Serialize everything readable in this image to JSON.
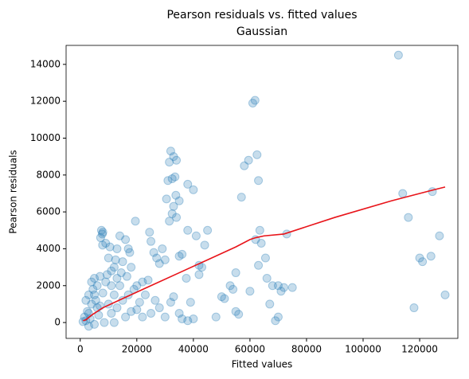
{
  "chart_data": {
    "type": "scatter",
    "title": "Pearson residuals vs. fitted values",
    "subtitle": "Gaussian",
    "x_label": "Fitted values",
    "y_label": "Pearson residuals",
    "xlim": [
      -5000,
      133500
    ],
    "ylim": [
      -860,
      15030
    ],
    "xticks": [
      0,
      20000,
      40000,
      60000,
      80000,
      100000,
      120000
    ],
    "yticks": [
      0,
      2000,
      4000,
      6000,
      8000,
      10000,
      12000,
      14000
    ],
    "points": {
      "color": "#1f77b4",
      "x": [
        112500,
        61000,
        61800,
        32000,
        33000,
        34000,
        31500,
        32500,
        33500,
        31000,
        33800,
        35000,
        30500,
        32500,
        33000,
        34000,
        31500,
        19500,
        58000,
        59500,
        62500,
        63000,
        57000,
        63500,
        64000,
        65500,
        63000,
        66000,
        68000,
        70000,
        71000,
        72000,
        62000,
        60000,
        55000,
        54000,
        53000,
        50000,
        51000,
        55000,
        56000,
        48000,
        67000,
        69000,
        70000,
        73000,
        75000,
        114000,
        116000,
        120000,
        121000,
        124000,
        124500,
        127000,
        129000,
        118000,
        38000,
        40000,
        42000,
        43000,
        41000,
        44000,
        42000,
        45000,
        38000,
        37500,
        39000,
        40000,
        36000,
        35000,
        30000,
        29000,
        28000,
        27000,
        25000,
        24500,
        26000,
        24000,
        22000,
        20000,
        18000,
        17500,
        17000,
        16000,
        14000,
        13000,
        12000,
        11000,
        10000,
        9000,
        7500,
        7800,
        8000,
        7200,
        7900,
        10500,
        12500,
        15000,
        14500,
        16500,
        19000,
        21000,
        23000,
        26500,
        28000,
        30000,
        32000,
        35000,
        36000,
        38000,
        33000,
        25000,
        20000,
        22000,
        2000,
        3000,
        4000,
        5000,
        6000,
        3500,
        2500,
        4500,
        5500,
        6500,
        7000,
        8000,
        9000,
        10000,
        11000,
        12000,
        13000,
        14000,
        15000,
        16000,
        17000,
        18000,
        1500,
        1000,
        3000,
        4000,
        5000,
        6000,
        8500,
        9500,
        12000,
        2000,
        7000,
        11000,
        13000,
        3000,
        5000
      ],
      "y": [
        14500,
        11900,
        12050,
        9300,
        9000,
        8800,
        8700,
        7800,
        7900,
        7700,
        6900,
        6600,
        6700,
        5900,
        6300,
        5700,
        5500,
        5500,
        8500,
        8800,
        9100,
        7700,
        6800,
        5000,
        4300,
        3500,
        3100,
        2400,
        2000,
        2000,
        1700,
        1900,
        4500,
        1700,
        2700,
        1800,
        2000,
        1400,
        1300,
        600,
        450,
        300,
        1000,
        100,
        300,
        4800,
        1900,
        7000,
        5700,
        3500,
        3300,
        3600,
        7100,
        4700,
        1500,
        800,
        7500,
        7200,
        3100,
        3000,
        4700,
        4200,
        2600,
        5000,
        5000,
        2400,
        1100,
        200,
        3700,
        3600,
        3400,
        4000,
        3200,
        3500,
        4400,
        4900,
        3800,
        2300,
        2200,
        2000,
        3000,
        3800,
        4000,
        4500,
        4700,
        4000,
        3000,
        2800,
        3500,
        4300,
        5000,
        4800,
        4900,
        4600,
        4200,
        4100,
        3400,
        3300,
        2700,
        2500,
        1800,
        1100,
        1500,
        1200,
        800,
        300,
        1100,
        500,
        200,
        100,
        1400,
        500,
        700,
        300,
        100,
        500,
        1000,
        1500,
        2000,
        200,
        600,
        1800,
        1200,
        400,
        900,
        1600,
        2200,
        1000,
        500,
        1500,
        800,
        2000,
        1200,
        300,
        1500,
        600,
        300,
        50,
        1500,
        2200,
        2400,
        800,
        0,
        2600,
        0,
        1200,
        2500,
        2000,
        2400,
        -200,
        -100
      ]
    },
    "line": {
      "color": "#e8141a",
      "x": [
        1000,
        2000,
        4000,
        8000,
        15000,
        25000,
        35000,
        45000,
        55000,
        60000,
        62000,
        65000,
        72000,
        90000,
        110000,
        125000,
        129000
      ],
      "y": [
        100,
        150,
        400,
        800,
        1300,
        2000,
        2700,
        3400,
        4100,
        4500,
        4600,
        4700,
        4800,
        5700,
        6600,
        7200,
        7350
      ]
    }
  }
}
